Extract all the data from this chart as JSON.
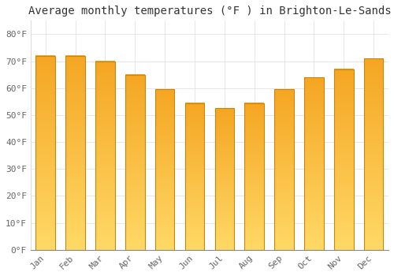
{
  "title": "Average monthly temperatures (°F ) in Brighton-Le-Sands",
  "months": [
    "Jan",
    "Feb",
    "Mar",
    "Apr",
    "May",
    "Jun",
    "Jul",
    "Aug",
    "Sep",
    "Oct",
    "Nov",
    "Dec"
  ],
  "values": [
    72,
    72,
    70,
    65,
    59.5,
    54.5,
    52.5,
    54.5,
    59.5,
    64,
    67,
    71
  ],
  "bar_color_top": "#F5A623",
  "bar_color_bottom": "#FFD966",
  "bar_edge_color": "#C8860A",
  "ylim": [
    0,
    85
  ],
  "yticks": [
    0,
    10,
    20,
    30,
    40,
    50,
    60,
    70,
    80
  ],
  "ytick_labels": [
    "0°F",
    "10°F",
    "20°F",
    "30°F",
    "40°F",
    "50°F",
    "60°F",
    "70°F",
    "80°F"
  ],
  "background_color": "#FFFFFF",
  "grid_color": "#DDDDDD",
  "title_fontsize": 10,
  "tick_fontsize": 8,
  "font_family": "monospace",
  "bar_width": 0.65
}
